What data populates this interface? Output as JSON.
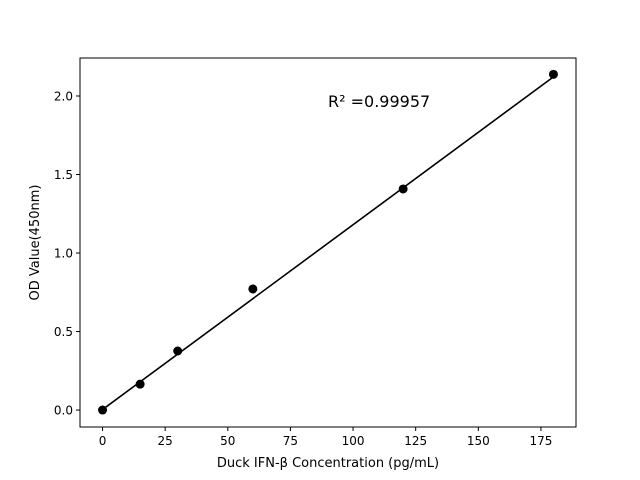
{
  "chart_data": {
    "type": "scatter",
    "title": "",
    "xlabel": "Duck IFN-β Concentration (pg/mL)",
    "ylabel": "OD Value(450nm)",
    "xlim": [
      -9,
      189
    ],
    "ylim": [
      -0.108,
      2.242
    ],
    "xticks": [
      0,
      25,
      50,
      75,
      100,
      125,
      150,
      175
    ],
    "xtick_labels": [
      "0",
      "25",
      "50",
      "75",
      "100",
      "125",
      "150",
      "175"
    ],
    "yticks": [
      0.0,
      0.5,
      1.0,
      1.5,
      2.0
    ],
    "ytick_labels": [
      "0.0",
      "0.5",
      "1.0",
      "1.5",
      "2.0"
    ],
    "grid": false,
    "points": {
      "x": [
        0,
        15,
        30,
        60,
        120,
        180
      ],
      "y": [
        0.0,
        0.165,
        0.376,
        0.771,
        1.408,
        2.138
      ],
      "color": "#000000"
    },
    "fit_line": {
      "x": [
        0,
        180
      ],
      "y": [
        0.003,
        2.122
      ],
      "color": "#000000"
    },
    "annotation": {
      "text": "R² =0.99957",
      "x": 90,
      "y": 1.93
    }
  }
}
